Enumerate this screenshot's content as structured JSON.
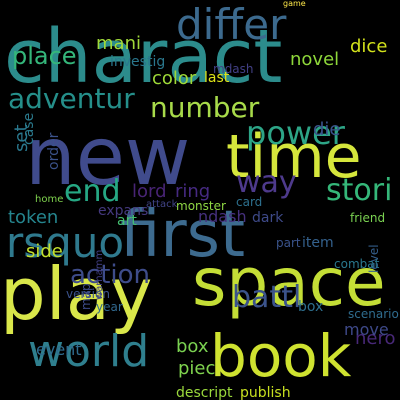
{
  "words": [
    {
      "text": "charact",
      "color": "#2c8c8c",
      "weight": 1.0
    },
    {
      "text": "new",
      "color": "#404b8c",
      "weight": 0.97
    },
    {
      "text": "first",
      "color": "#3d6b8f",
      "weight": 0.9
    },
    {
      "text": "space",
      "color": "#c4de36",
      "weight": 0.87
    },
    {
      "text": "book",
      "color": "#cfe230",
      "weight": 0.83
    },
    {
      "text": "play",
      "color": "#d9e74a",
      "weight": 0.79
    },
    {
      "text": "time",
      "color": "#d5e63c",
      "weight": 0.72
    },
    {
      "text": "world",
      "color": "#2f7f8e",
      "weight": 0.62
    },
    {
      "text": "differ",
      "color": "#3c6a8e",
      "weight": 0.6
    },
    {
      "text": "rsquo",
      "color": "#2f7a8e",
      "weight": 0.56
    },
    {
      "text": "power",
      "color": "#2da587",
      "weight": 0.55
    },
    {
      "text": "number",
      "color": "#a8db4a",
      "weight": 0.5
    },
    {
      "text": "adventur",
      "color": "#258f8a",
      "weight": 0.48
    },
    {
      "text": "end",
      "color": "#26a884",
      "weight": 0.45
    },
    {
      "text": "way",
      "color": "#4e3a8c",
      "weight": 0.45
    },
    {
      "text": "action",
      "color": "#3e4c8a",
      "weight": 0.42
    },
    {
      "text": "battl",
      "color": "#3b538b",
      "weight": 0.42
    },
    {
      "text": "stori",
      "color": "#35b779",
      "weight": 0.42
    },
    {
      "text": "place",
      "color": "#34b67a",
      "weight": 0.37
    },
    {
      "text": "lord",
      "color": "#482475",
      "weight": 0.33
    },
    {
      "text": "ring",
      "color": "#462a82",
      "weight": 0.33
    },
    {
      "text": "token",
      "color": "#25858e",
      "weight": 0.33
    },
    {
      "text": "dice",
      "color": "#d2e21b",
      "weight": 0.33
    },
    {
      "text": "color",
      "color": "#9fd938",
      "weight": 0.31
    },
    {
      "text": "novel",
      "color": "#8ed73a",
      "weight": 0.31
    },
    {
      "text": "side",
      "color": "#c4e02d",
      "weight": 0.31
    },
    {
      "text": "box",
      "color": "#7ad151",
      "weight": 0.31
    },
    {
      "text": "piec",
      "color": "#7fd34e",
      "weight": 0.29
    },
    {
      "text": "hero",
      "color": "#482878",
      "weight": 0.29
    },
    {
      "text": "die",
      "color": "#3a538b",
      "weight": 0.29
    },
    {
      "text": "mani",
      "color": "#a0da39",
      "weight": 0.28
    },
    {
      "text": "set",
      "color": "#2a788e",
      "weight": 0.27
    },
    {
      "text": "event",
      "color": "#2f6c8e",
      "weight": 0.26
    },
    {
      "text": "move",
      "color": "#3e4989",
      "weight": 0.26
    },
    {
      "text": "investig",
      "color": "#2a788e",
      "weight": 0.24
    },
    {
      "text": "expans",
      "color": "#44397e",
      "weight": 0.24
    },
    {
      "text": "ndash",
      "color": "#46307e",
      "weight": 0.24
    },
    {
      "text": "card",
      "color": "#2d708e",
      "weight": 0.2
    },
    {
      "text": "mdash",
      "color": "#424086",
      "weight": 0.2
    },
    {
      "text": "case",
      "color": "#2b7b8e",
      "weight": 0.2
    },
    {
      "text": "order",
      "color": "#3b528b",
      "weight": 0.2
    },
    {
      "text": "game",
      "color": "#ffe94a",
      "weight": 0.2
    },
    {
      "text": "home",
      "color": "#7fd34e",
      "weight": 0.2
    },
    {
      "text": "part",
      "color": "#3a538b",
      "weight": 0.2
    },
    {
      "text": "item",
      "color": "#34618d",
      "weight": 0.2
    },
    {
      "text": "level",
      "color": "#355f8d",
      "weight": 0.2
    },
    {
      "text": "box",
      "color": "#2e6f8e",
      "weight": 0.2
    },
    {
      "text": "scenario",
      "color": "#2f6c8e",
      "weight": 0.18
    },
    {
      "text": "last",
      "color": "#dde318",
      "weight": 0.18
    },
    {
      "text": "friend",
      "color": "#7ad151",
      "weight": 0.16
    },
    {
      "text": "combat",
      "color": "#2a788e",
      "weight": 0.16
    },
    {
      "text": "version",
      "color": "#3b528b",
      "weight": 0.16
    },
    {
      "text": "year",
      "color": "#31688e",
      "weight": 0.16
    },
    {
      "text": "art",
      "color": "#44bf70",
      "weight": 0.16
    },
    {
      "text": "map",
      "color": "#3e4c8a",
      "weight": 0.16
    },
    {
      "text": "warhamm",
      "color": "#424086",
      "weight": 0.16
    },
    {
      "text": "monster",
      "color": "#8fd744",
      "weight": 0.16
    },
    {
      "text": "dark",
      "color": "#3e4a89",
      "weight": 0.16
    },
    {
      "text": "attack",
      "color": "#414487",
      "weight": 0.16
    },
    {
      "text": "publish",
      "color": "#c8e020",
      "weight": 0.16
    },
    {
      "text": "descript",
      "color": "#9bd93c",
      "weight": 0.16
    }
  ]
}
